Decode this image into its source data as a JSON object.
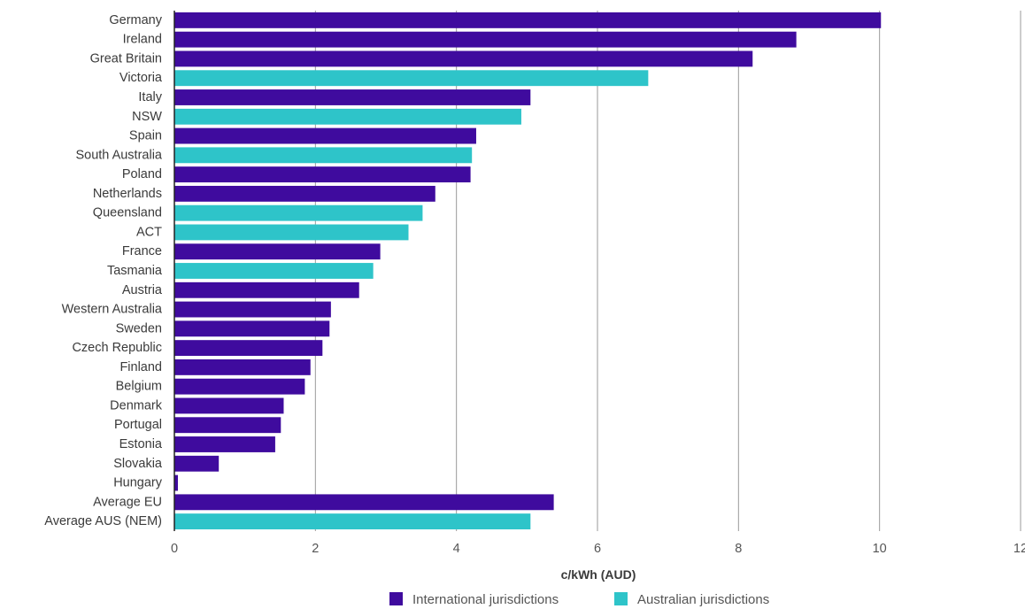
{
  "chart_data": {
    "type": "bar",
    "orientation": "horizontal",
    "xlabel": "c/kWh (AUD)",
    "xlim": [
      0,
      12
    ],
    "xticks": [
      0,
      2,
      4,
      6,
      8,
      10,
      12
    ],
    "grid": "vertical",
    "legend_position": "bottom",
    "colors": {
      "international": "#3f0b9e",
      "australian": "#2ec4c9"
    },
    "legend": [
      {
        "group": "international",
        "label": "International jurisdictions"
      },
      {
        "group": "australian",
        "label": "Australian jurisdictions"
      }
    ],
    "bars": [
      {
        "label": "Germany",
        "value": 10.02,
        "group": "international"
      },
      {
        "label": "Ireland",
        "value": 8.82,
        "group": "international"
      },
      {
        "label": "Great Britain",
        "value": 8.2,
        "group": "international"
      },
      {
        "label": "Victoria",
        "value": 6.72,
        "group": "australian"
      },
      {
        "label": "Italy",
        "value": 5.05,
        "group": "international"
      },
      {
        "label": "NSW",
        "value": 4.92,
        "group": "australian"
      },
      {
        "label": "Spain",
        "value": 4.28,
        "group": "international"
      },
      {
        "label": "South Australia",
        "value": 4.22,
        "group": "australian"
      },
      {
        "label": "Poland",
        "value": 4.2,
        "group": "international"
      },
      {
        "label": "Netherlands",
        "value": 3.7,
        "group": "international"
      },
      {
        "label": "Queensland",
        "value": 3.52,
        "group": "australian"
      },
      {
        "label": "ACT",
        "value": 3.32,
        "group": "australian"
      },
      {
        "label": "France",
        "value": 2.92,
        "group": "international"
      },
      {
        "label": "Tasmania",
        "value": 2.82,
        "group": "australian"
      },
      {
        "label": "Austria",
        "value": 2.62,
        "group": "international"
      },
      {
        "label": "Western Australia",
        "value": 2.22,
        "group": "international"
      },
      {
        "label": "Sweden",
        "value": 2.2,
        "group": "international"
      },
      {
        "label": "Czech Republic",
        "value": 2.1,
        "group": "international"
      },
      {
        "label": "Finland",
        "value": 1.93,
        "group": "international"
      },
      {
        "label": "Belgium",
        "value": 1.85,
        "group": "international"
      },
      {
        "label": "Denmark",
        "value": 1.55,
        "group": "international"
      },
      {
        "label": "Portugal",
        "value": 1.51,
        "group": "international"
      },
      {
        "label": "Estonia",
        "value": 1.43,
        "group": "international"
      },
      {
        "label": "Slovakia",
        "value": 0.63,
        "group": "international"
      },
      {
        "label": "Hungary",
        "value": 0.05,
        "group": "international"
      },
      {
        "label": "Average EU",
        "value": 5.38,
        "group": "international"
      },
      {
        "label": "Average AUS (NEM)",
        "value": 5.05,
        "group": "australian"
      }
    ]
  }
}
